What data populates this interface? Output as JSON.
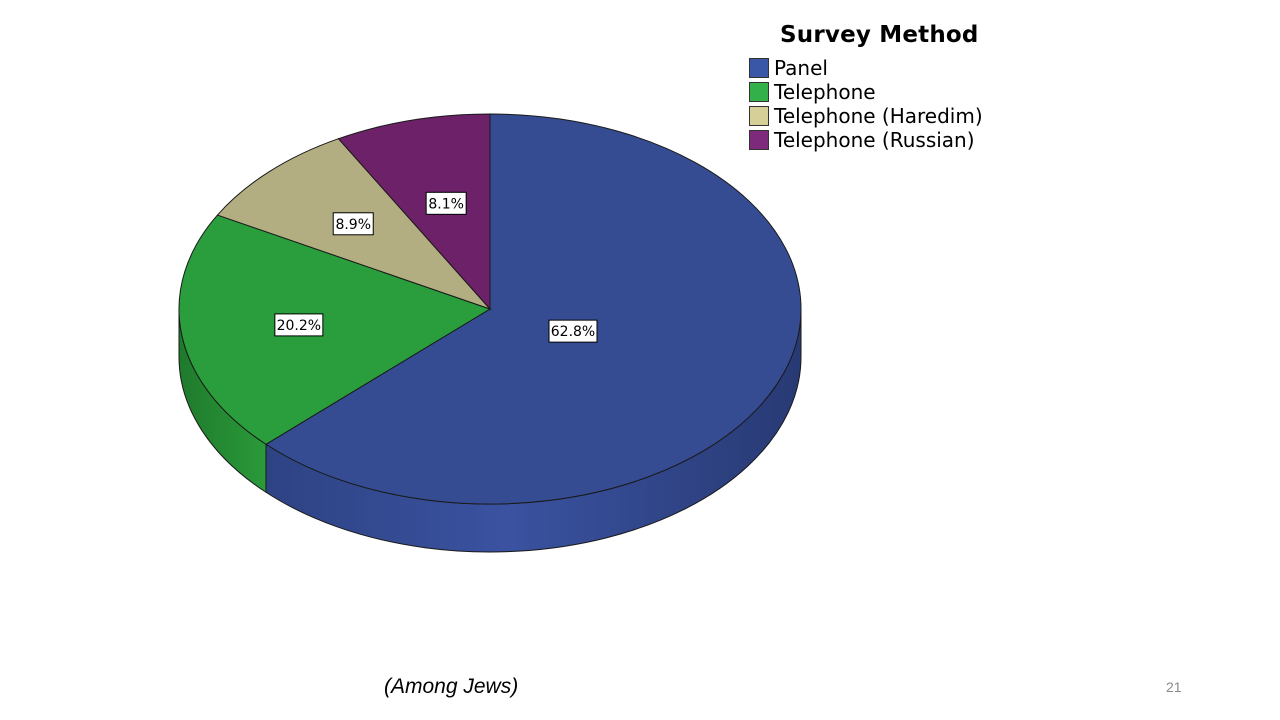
{
  "chart_data": {
    "type": "pie",
    "style": "3d",
    "legend_title": "Survey Method",
    "legend_position": "top-right",
    "slices": [
      {
        "label": "Panel",
        "value": 62.8,
        "display": "62.8%",
        "color": "#354C92",
        "side_color": "#2C4080"
      },
      {
        "label": "Telephone",
        "value": 20.2,
        "display": "20.2%",
        "color": "#2A9E3C",
        "side_color": "#22852F"
      },
      {
        "label": "Telephone (Haredim)",
        "value": 8.9,
        "display": "8.9%",
        "color": "#B3AE82",
        "side_color": "#9C976E"
      },
      {
        "label": "Telephone (Russian)",
        "value": 8.1,
        "display": "8.1%",
        "color": "#6C2168",
        "side_color": "#5A1B57"
      }
    ],
    "legend_swatch_colors": [
      "#3A56A6",
      "#34B04A",
      "#D7CF98",
      "#7E2A7C"
    ]
  },
  "footer": {
    "note": "(Among Jews)",
    "page_number": "21"
  }
}
